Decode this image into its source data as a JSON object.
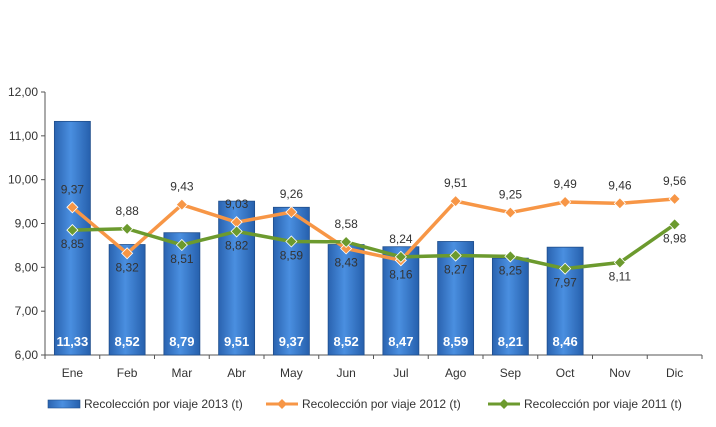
{
  "chart_data": {
    "type": "bar",
    "categories": [
      "Ene",
      "Feb",
      "Mar",
      "Abr",
      "May",
      "Jun",
      "Jul",
      "Ago",
      "Sep",
      "Oct",
      "Nov",
      "Dic"
    ],
    "ylim": [
      6,
      12
    ],
    "yticks": [
      "6,00",
      "7,00",
      "8,00",
      "9,00",
      "10,00",
      "11,00",
      "12,00"
    ],
    "ytick_values": [
      6,
      7,
      8,
      9,
      10,
      11,
      12
    ],
    "grid": false,
    "legend_position": "bottom",
    "series": [
      {
        "name": "Recolección por viaje 2013 (t)",
        "kind": "bar",
        "color": "#3d7fd0",
        "values": [
          11.33,
          8.52,
          8.79,
          9.51,
          9.37,
          8.52,
          8.47,
          8.59,
          8.21,
          8.46,
          null,
          null
        ],
        "labels": [
          "11,33",
          "8,52",
          "8,79",
          "9,51",
          "9,37",
          "8,52",
          "8,47",
          "8,59",
          "8,21",
          "8,46",
          "",
          ""
        ]
      },
      {
        "name": "Recolección por viaje 2012 (t)",
        "kind": "line",
        "color": "#f79646",
        "values": [
          9.37,
          8.32,
          9.43,
          9.03,
          9.26,
          8.43,
          8.16,
          9.51,
          9.25,
          9.49,
          9.46,
          9.56
        ],
        "labels": [
          "9,37",
          "8,32",
          "9,43",
          "9,03",
          "9,26",
          "8,43",
          "8,16",
          "9,51",
          "9,25",
          "9,49",
          "9,46",
          "9,56"
        ]
      },
      {
        "name": "Recolección por viaje 2011 (t)",
        "kind": "line",
        "color": "#6c9a2e",
        "values": [
          8.85,
          8.88,
          8.51,
          8.82,
          8.59,
          8.58,
          8.24,
          8.27,
          8.25,
          7.97,
          8.11,
          8.98
        ],
        "labels": [
          "8,85",
          "8,88",
          "8,51",
          "8,82",
          "8,59",
          "8,58",
          "8,24",
          "8,27",
          "8,25",
          "7,97",
          "8,11",
          "8,98"
        ]
      }
    ]
  }
}
